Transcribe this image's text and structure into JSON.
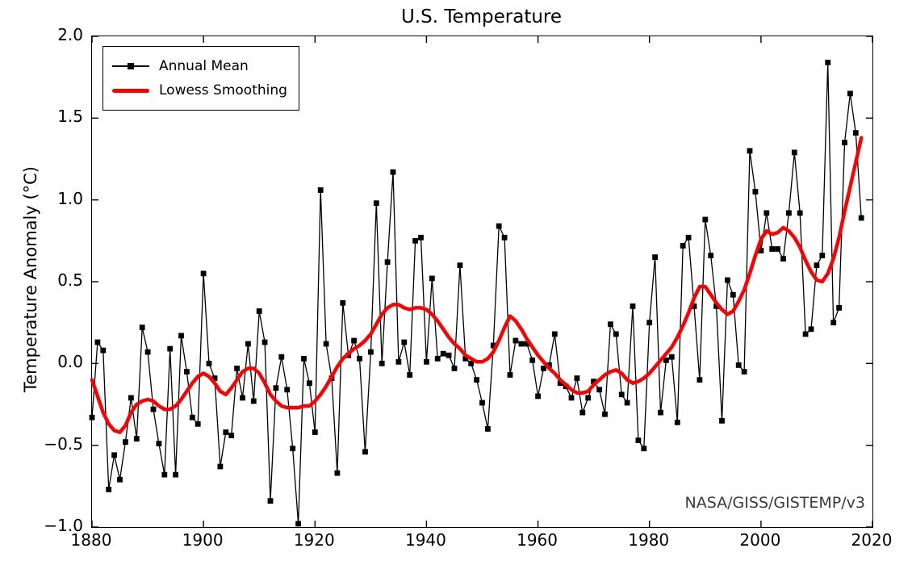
{
  "figure": {
    "title": "U.S. Temperature",
    "y_axis_label": "Temperature Anomaly (°C)",
    "footer_annotation": "NASA/GISS/GISTEMP/v3"
  },
  "legend": {
    "position": "upper left",
    "items": [
      {
        "label": "Annual Mean",
        "style": "thin-black-line-with-square-marker",
        "color": "#000000"
      },
      {
        "label": "Lowess Smoothing",
        "style": "thick-red-line",
        "color": "#ff0000"
      }
    ]
  },
  "chart_data": {
    "type": "line",
    "title": "U.S. Temperature",
    "xlabel": "",
    "ylabel": "Temperature Anomaly (°C)",
    "xlim": [
      1880,
      2020
    ],
    "ylim": [
      -1.0,
      2.0
    ],
    "grid": false,
    "legend_position": "upper left",
    "annotation": "NASA/GISS/GISTEMP/v3",
    "x_ticks": [
      1880,
      1900,
      1920,
      1940,
      1960,
      1980,
      2000,
      2020
    ],
    "x_tick_labels": [
      "1880",
      "1900",
      "1920",
      "1940",
      "1960",
      "1980",
      "2000",
      "2020"
    ],
    "y_ticks": [
      2.0,
      1.5,
      1.0,
      0.5,
      0.0,
      -0.5,
      -1.0
    ],
    "y_tick_labels": [
      "2.0",
      "1.5",
      "1.0",
      "0.5",
      "0.0",
      "−0.5",
      "−1.0"
    ],
    "x": [
      1880,
      1881,
      1882,
      1883,
      1884,
      1885,
      1886,
      1887,
      1888,
      1889,
      1890,
      1891,
      1892,
      1893,
      1894,
      1895,
      1896,
      1897,
      1898,
      1899,
      1900,
      1901,
      1902,
      1903,
      1904,
      1905,
      1906,
      1907,
      1908,
      1909,
      1910,
      1911,
      1912,
      1913,
      1914,
      1915,
      1916,
      1917,
      1918,
      1919,
      1920,
      1921,
      1922,
      1923,
      1924,
      1925,
      1926,
      1927,
      1928,
      1929,
      1930,
      1931,
      1932,
      1933,
      1934,
      1935,
      1936,
      1937,
      1938,
      1939,
      1940,
      1941,
      1942,
      1943,
      1944,
      1945,
      1946,
      1947,
      1948,
      1949,
      1950,
      1951,
      1952,
      1953,
      1954,
      1955,
      1956,
      1957,
      1958,
      1959,
      1960,
      1961,
      1962,
      1963,
      1964,
      1965,
      1966,
      1967,
      1968,
      1969,
      1970,
      1971,
      1972,
      1973,
      1974,
      1975,
      1976,
      1977,
      1978,
      1979,
      1980,
      1981,
      1982,
      1983,
      1984,
      1985,
      1986,
      1987,
      1988,
      1989,
      1990,
      1991,
      1992,
      1993,
      1994,
      1995,
      1996,
      1997,
      1998,
      1999,
      2000,
      2001,
      2002,
      2003,
      2004,
      2005,
      2006,
      2007,
      2008,
      2009,
      2010,
      2011,
      2012,
      2013,
      2014,
      2015,
      2016,
      2017,
      2018
    ],
    "series": [
      {
        "name": "Annual Mean",
        "color": "#000000",
        "marker": "square",
        "linewidth": 1.3,
        "values": [
          -0.33,
          0.13,
          0.08,
          -0.77,
          -0.56,
          -0.71,
          -0.48,
          -0.21,
          -0.46,
          0.22,
          0.07,
          -0.28,
          -0.49,
          -0.68,
          0.09,
          -0.68,
          0.17,
          -0.05,
          -0.33,
          -0.37,
          0.55,
          0.0,
          -0.09,
          -0.63,
          -0.42,
          -0.44,
          -0.03,
          -0.21,
          0.12,
          -0.23,
          0.32,
          0.13,
          -0.84,
          -0.15,
          0.04,
          -0.16,
          -0.52,
          -0.98,
          0.03,
          -0.12,
          -0.42,
          1.06,
          0.12,
          -0.09,
          -0.67,
          0.37,
          0.05,
          0.14,
          0.03,
          -0.54,
          0.07,
          0.98,
          0.0,
          0.62,
          1.17,
          0.01,
          0.13,
          -0.07,
          0.75,
          0.77,
          0.01,
          0.52,
          0.03,
          0.06,
          0.05,
          -0.03,
          0.6,
          0.03,
          0.0,
          -0.1,
          -0.24,
          -0.4,
          0.11,
          0.84,
          0.77,
          -0.07,
          0.14,
          0.12,
          0.12,
          0.02,
          -0.2,
          -0.03,
          -0.01,
          0.18,
          -0.12,
          -0.14,
          -0.21,
          -0.09,
          -0.3,
          -0.21,
          -0.11,
          -0.16,
          -0.31,
          0.24,
          0.18,
          -0.19,
          -0.24,
          0.35,
          -0.47,
          -0.52,
          0.25,
          0.65,
          -0.3,
          0.02,
          0.04,
          -0.36,
          0.72,
          0.77,
          0.35,
          -0.1,
          0.88,
          0.66,
          0.35,
          -0.35,
          0.51,
          0.42,
          -0.01,
          -0.05,
          1.3,
          1.05,
          0.69,
          0.92,
          0.7,
          0.7,
          0.64,
          0.92,
          1.29,
          0.92,
          0.18,
          0.21,
          0.6,
          0.66,
          1.84,
          0.25,
          0.34,
          1.35,
          1.65,
          1.41,
          0.89
        ]
      },
      {
        "name": "Lowess Smoothing",
        "color": "#ff0000",
        "marker": "none",
        "linewidth": 4.5,
        "values": [
          -0.1,
          -0.2,
          -0.3,
          -0.37,
          -0.41,
          -0.42,
          -0.38,
          -0.3,
          -0.25,
          -0.23,
          -0.22,
          -0.23,
          -0.26,
          -0.28,
          -0.28,
          -0.26,
          -0.22,
          -0.17,
          -0.12,
          -0.08,
          -0.06,
          -0.08,
          -0.12,
          -0.17,
          -0.19,
          -0.15,
          -0.1,
          -0.05,
          -0.03,
          -0.03,
          -0.06,
          -0.12,
          -0.19,
          -0.23,
          -0.26,
          -0.27,
          -0.27,
          -0.27,
          -0.26,
          -0.26,
          -0.23,
          -0.19,
          -0.14,
          -0.08,
          -0.02,
          0.03,
          0.06,
          0.09,
          0.11,
          0.14,
          0.18,
          0.24,
          0.3,
          0.34,
          0.36,
          0.36,
          0.34,
          0.33,
          0.34,
          0.34,
          0.33,
          0.3,
          0.26,
          0.21,
          0.16,
          0.12,
          0.09,
          0.05,
          0.03,
          0.01,
          0.01,
          0.03,
          0.07,
          0.14,
          0.22,
          0.29,
          0.26,
          0.21,
          0.15,
          0.1,
          0.05,
          0.01,
          -0.03,
          -0.06,
          -0.1,
          -0.13,
          -0.16,
          -0.18,
          -0.18,
          -0.17,
          -0.13,
          -0.1,
          -0.07,
          -0.05,
          -0.04,
          -0.06,
          -0.1,
          -0.12,
          -0.11,
          -0.09,
          -0.06,
          -0.02,
          0.02,
          0.06,
          0.1,
          0.16,
          0.23,
          0.31,
          0.4,
          0.47,
          0.47,
          0.42,
          0.37,
          0.33,
          0.3,
          0.32,
          0.38,
          0.45,
          0.55,
          0.66,
          0.76,
          0.81,
          0.79,
          0.8,
          0.83,
          0.81,
          0.77,
          0.71,
          0.63,
          0.56,
          0.51,
          0.5,
          0.55,
          0.64,
          0.77,
          0.93,
          1.08,
          1.23,
          1.38
        ]
      }
    ]
  }
}
